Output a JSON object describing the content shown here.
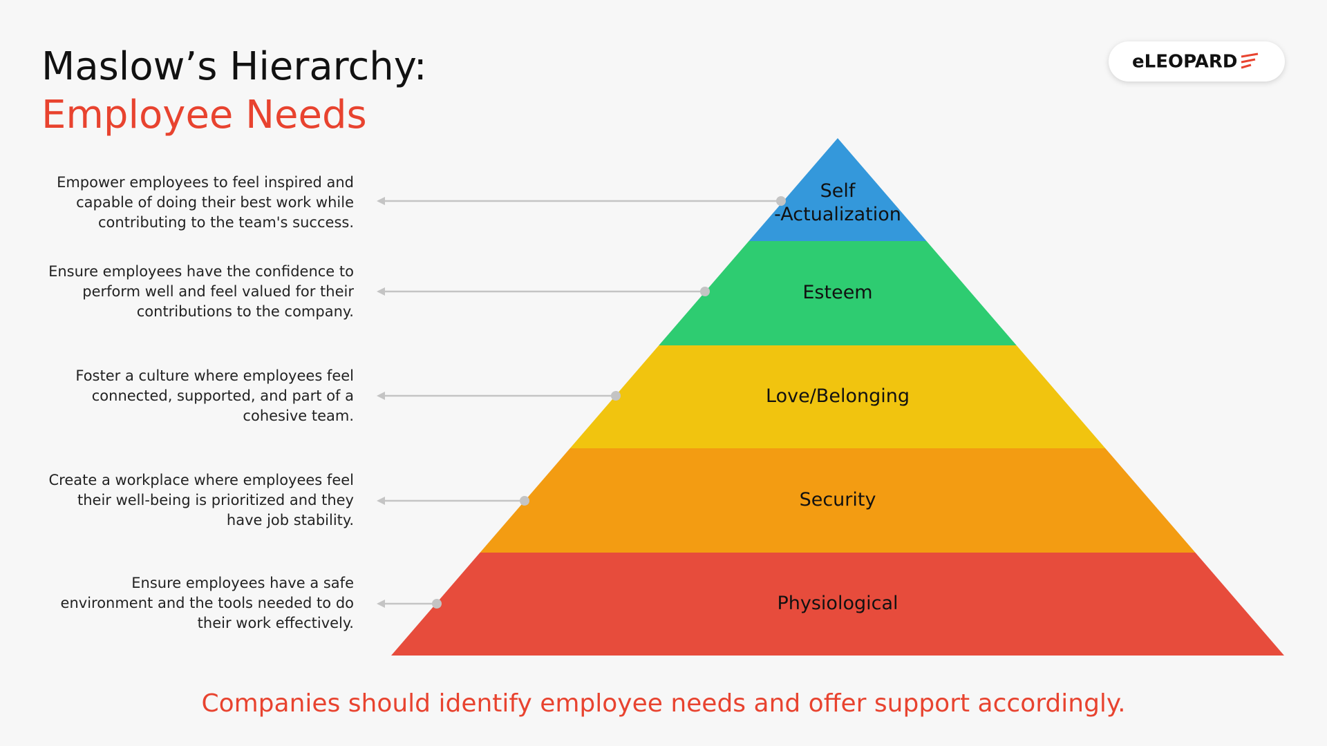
{
  "header": {
    "title": "Maslow’s Hierarchy:",
    "subtitle": "Employee Needs"
  },
  "logo": {
    "text": "eLEOPARD"
  },
  "levels": [
    {
      "label": [
        "Self",
        "-Actualization"
      ],
      "description": [
        "Empower employees to feel inspired and",
        "capable of doing their best work while",
        "contributing to the team's success."
      ]
    },
    {
      "label": [
        "Esteem"
      ],
      "description": [
        "Ensure employees have the confidence to",
        "perform well and feel valued for their",
        "contributions to the company."
      ]
    },
    {
      "label": [
        "Love/Belonging"
      ],
      "description": [
        "Foster a culture where employees feel",
        "connected, supported, and part of a",
        "cohesive team."
      ]
    },
    {
      "label": [
        "Security"
      ],
      "description": [
        "Create a workplace where employees feel",
        "their well-being is prioritized and they",
        "have job stability."
      ]
    },
    {
      "label": [
        "Physiological"
      ],
      "description": [
        "Ensure employees have a safe",
        "environment and the tools needed to do",
        "their work effectively."
      ]
    }
  ],
  "footer": "Companies should identify employee needs and offer support accordingly."
}
